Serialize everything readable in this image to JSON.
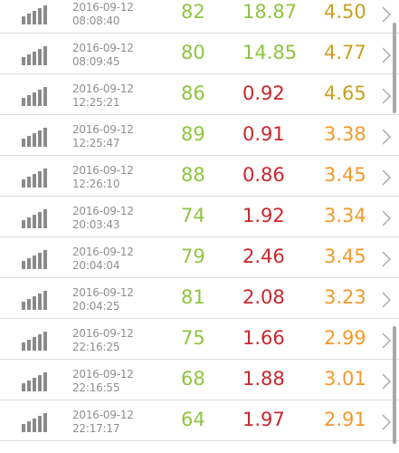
{
  "colors": {
    "green": "#8dc63f",
    "red": "#c8272d",
    "gold": "#c8a021",
    "orange": "#f39a2c",
    "icon": "#8a8a8a",
    "chevron": "#a7a7a7"
  },
  "icons": {
    "signal": "signal-bars-icon",
    "chevron": "chevron-right-icon"
  },
  "rows": [
    {
      "date": "2016-09-12",
      "time": "08:08:40",
      "v1": "82",
      "v1_color": "green",
      "v2": "18.87",
      "v2_color": "green",
      "v3": "4.50",
      "v3_color": "gold"
    },
    {
      "date": "2016-09-12",
      "time": "08:09:45",
      "v1": "80",
      "v1_color": "green",
      "v2": "14.85",
      "v2_color": "green",
      "v3": "4.77",
      "v3_color": "gold"
    },
    {
      "date": "2016-09-12",
      "time": "12:25:21",
      "v1": "86",
      "v1_color": "green",
      "v2": "0.92",
      "v2_color": "red",
      "v3": "4.65",
      "v3_color": "gold"
    },
    {
      "date": "2016-09-12",
      "time": "12:25:47",
      "v1": "89",
      "v1_color": "green",
      "v2": "0.91",
      "v2_color": "red",
      "v3": "3.38",
      "v3_color": "orange"
    },
    {
      "date": "2016-09-12",
      "time": "12:26:10",
      "v1": "88",
      "v1_color": "green",
      "v2": "0.86",
      "v2_color": "red",
      "v3": "3.45",
      "v3_color": "orange"
    },
    {
      "date": "2016-09-12",
      "time": "20:03:43",
      "v1": "74",
      "v1_color": "green",
      "v2": "1.92",
      "v2_color": "red",
      "v3": "3.34",
      "v3_color": "orange"
    },
    {
      "date": "2016-09-12",
      "time": "20:04:04",
      "v1": "79",
      "v1_color": "green",
      "v2": "2.46",
      "v2_color": "red",
      "v3": "3.45",
      "v3_color": "orange"
    },
    {
      "date": "2016-09-12",
      "time": "20:04:25",
      "v1": "81",
      "v1_color": "green",
      "v2": "2.08",
      "v2_color": "red",
      "v3": "3.23",
      "v3_color": "orange"
    },
    {
      "date": "2016-09-12",
      "time": "22:16:25",
      "v1": "75",
      "v1_color": "green",
      "v2": "1.66",
      "v2_color": "red",
      "v3": "2.99",
      "v3_color": "orange"
    },
    {
      "date": "2016-09-12",
      "time": "22:16:55",
      "v1": "68",
      "v1_color": "green",
      "v2": "1.88",
      "v2_color": "red",
      "v3": "3.01",
      "v3_color": "orange"
    },
    {
      "date": "2016-09-12",
      "time": "22:17:17",
      "v1": "64",
      "v1_color": "green",
      "v2": "1.97",
      "v2_color": "red",
      "v3": "2.91",
      "v3_color": "orange"
    }
  ]
}
